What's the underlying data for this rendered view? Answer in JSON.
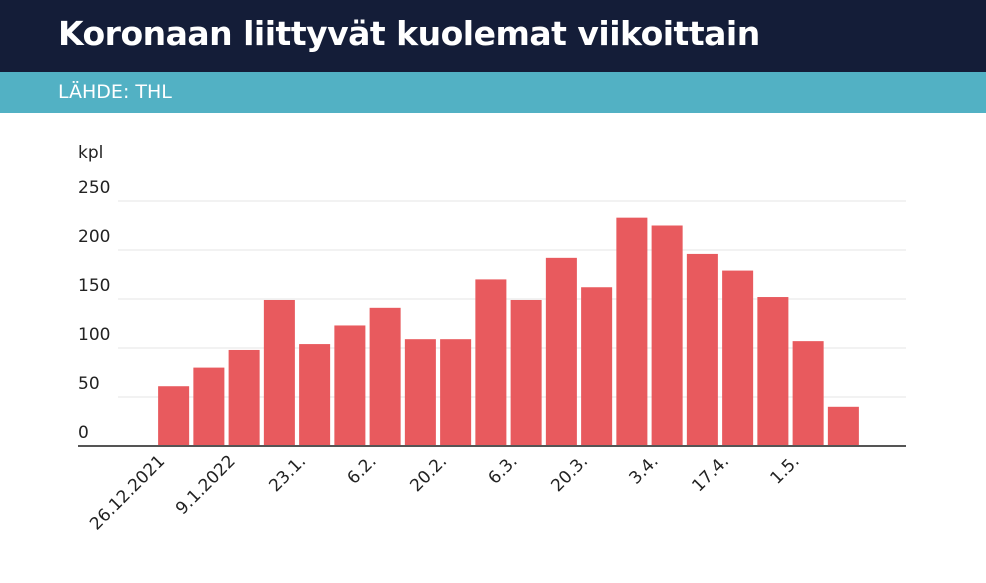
{
  "chart_data": {
    "type": "bar",
    "title": "Koronaan liittyvät kuolemat viikoittain",
    "subtitle": "LÄHDE: THL",
    "y_label": "kpl",
    "categories": [
      "26.12.2021",
      null,
      "9.1.2022",
      null,
      "23.1.",
      null,
      "6.2.",
      null,
      "20.2.",
      null,
      "6.3.",
      null,
      "20.3.",
      null,
      "3.4.",
      null,
      "17.4.",
      null,
      "1.5.",
      null
    ],
    "values": [
      61,
      80,
      98,
      149,
      104,
      123,
      141,
      109,
      109,
      170,
      149,
      192,
      162,
      233,
      225,
      196,
      179,
      152,
      107,
      40
    ],
    "color": "#e85a5e",
    "ylim": [
      0,
      250
    ],
    "yticks": [
      0,
      50,
      100,
      150,
      200,
      250
    ],
    "grid": true
  }
}
